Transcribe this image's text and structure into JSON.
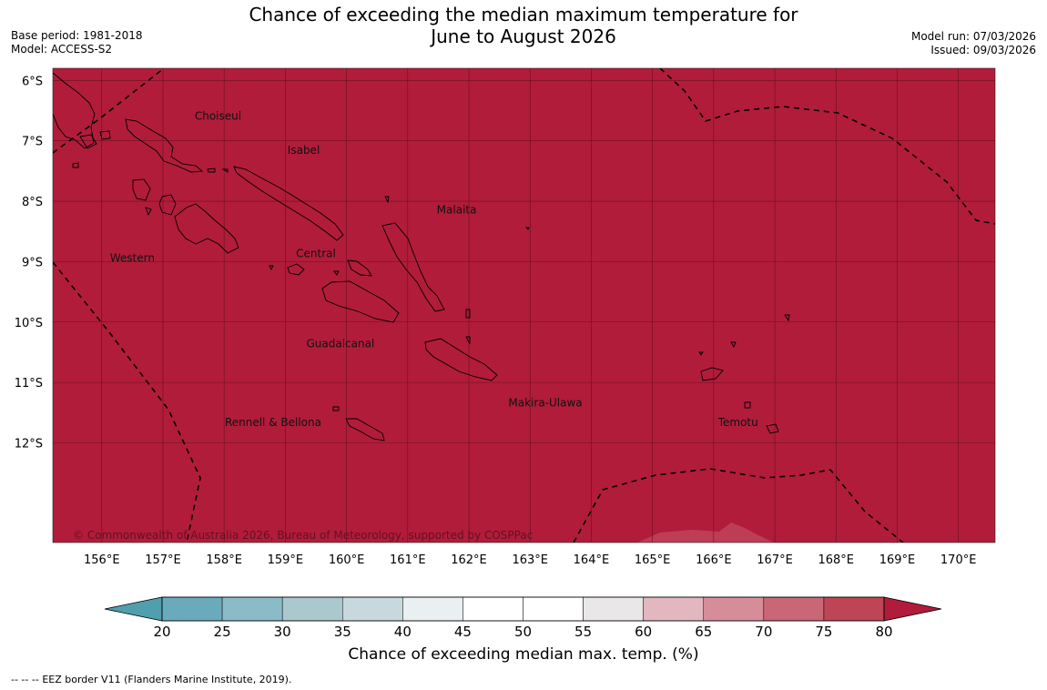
{
  "header": {
    "title_line1": "Chance of exceeding the median maximum temperature for",
    "title_line2": "June to August 2026",
    "base_period": "Base period: 1981-2018",
    "model": "Model: ACCESS-S2",
    "model_run": "Model run: 07/03/2026",
    "issued": "Issued: 09/03/2026"
  },
  "map": {
    "fill_color": "#b11c3a",
    "lon_range": [
      155.2,
      170.6
    ],
    "lat_range": [
      -13.65,
      -5.8
    ],
    "lat_ticks": [
      {
        "value": -6,
        "label": "6°S"
      },
      {
        "value": -7,
        "label": "7°S"
      },
      {
        "value": -8,
        "label": "8°S"
      },
      {
        "value": -9,
        "label": "9°S"
      },
      {
        "value": -10,
        "label": "10°S"
      },
      {
        "value": -11,
        "label": "11°S"
      },
      {
        "value": -12,
        "label": "12°S"
      }
    ],
    "lon_ticks": [
      {
        "value": 156,
        "label": "156°E"
      },
      {
        "value": 157,
        "label": "157°E"
      },
      {
        "value": 158,
        "label": "158°E"
      },
      {
        "value": 159,
        "label": "159°E"
      },
      {
        "value": 160,
        "label": "160°E"
      },
      {
        "value": 161,
        "label": "161°E"
      },
      {
        "value": 162,
        "label": "162°E"
      },
      {
        "value": 163,
        "label": "163°E"
      },
      {
        "value": 164,
        "label": "164°E"
      },
      {
        "value": 165,
        "label": "165°E"
      },
      {
        "value": 166,
        "label": "166°E"
      },
      {
        "value": 167,
        "label": "167°E"
      },
      {
        "value": 168,
        "label": "168°E"
      },
      {
        "value": 169,
        "label": "169°E"
      },
      {
        "value": 170,
        "label": "170°E"
      }
    ],
    "provinces": [
      {
        "name": "Choiseul",
        "lon": 157.9,
        "lat": -6.65
      },
      {
        "name": "Isabel",
        "lon": 159.3,
        "lat": -7.22
      },
      {
        "name": "Malaita",
        "lon": 161.8,
        "lat": -8.2
      },
      {
        "name": "Western",
        "lon": 156.5,
        "lat": -9.0
      },
      {
        "name": "Central",
        "lon": 159.5,
        "lat": -8.93
      },
      {
        "name": "Guadalcanal",
        "lon": 159.9,
        "lat": -10.42
      },
      {
        "name": "Makira-Ulawa",
        "lon": 163.25,
        "lat": -11.4
      },
      {
        "name": "Rennell & Bellona",
        "lon": 158.8,
        "lat": -11.72
      },
      {
        "name": "Temotu",
        "lon": 166.4,
        "lat": -11.72
      }
    ],
    "copyright": "© Commonwealth of Australia 2026, Bureau of Meteorology, supported by COSPPac"
  },
  "colorbar": {
    "title": "Chance of exceeding median max. temp. (%)",
    "ticks": [
      "20",
      "25",
      "30",
      "35",
      "40",
      "45",
      "50",
      "55",
      "60",
      "65",
      "70",
      "75",
      "80"
    ],
    "colors": [
      "#6aabbb",
      "#8bbbc7",
      "#a9c9cf",
      "#c8d9dd",
      "#eaf0f2",
      "#ffffff",
      "#ffffff",
      "#eae7e8",
      "#e2b7bf",
      "#d78d99",
      "#c96776",
      "#bd4555"
    ],
    "low_extend_color": "#4f9fae",
    "high_extend_color": "#b01c3a"
  },
  "footer": {
    "legend_symbol": "--  --  --",
    "legend_text": "EEZ border V11 (Flanders Marine Institute, 2019)."
  }
}
